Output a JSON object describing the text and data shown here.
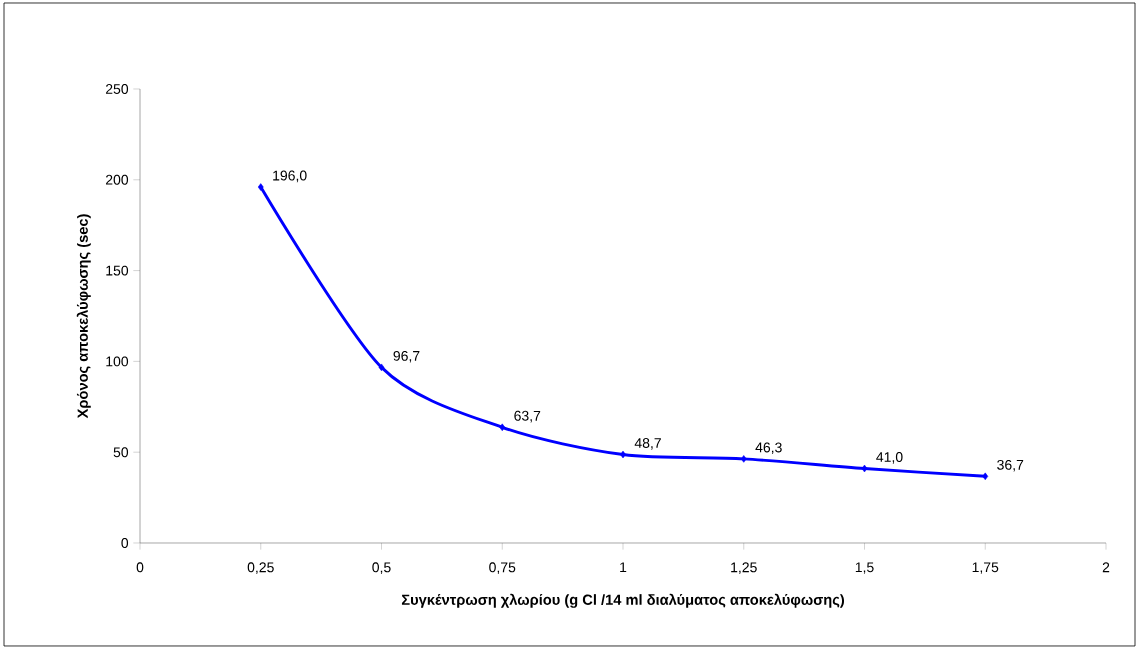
{
  "chart_data": {
    "type": "line",
    "xlabel": "Συγκέντρωση χλωρίου (g Cl /14 ml  διαλύματος αποκελύφωσης)",
    "ylabel": "Χρόνος αποκελύφωσης (sec)",
    "x": [
      0.25,
      0.5,
      0.75,
      1,
      1.25,
      1.5,
      1.75
    ],
    "series": [
      {
        "color": "#0000ff",
        "values": [
          196.0,
          96.7,
          63.7,
          48.7,
          46.3,
          41.0,
          36.7
        ],
        "value_labels": [
          "196,0",
          "96,7",
          "63,7",
          "48,7",
          "46,3",
          "41,0",
          "36,7"
        ]
      }
    ],
    "xlim": [
      0,
      2
    ],
    "ylim": [
      0,
      250
    ],
    "xticks": [
      0,
      {
        "value": 0.25,
        "label": "0,25"
      },
      {
        "value": 0.5,
        "label": "0,5"
      },
      {
        "value": 0.75,
        "label": "0,75"
      },
      1,
      {
        "value": 1.25,
        "label": "1,25"
      },
      {
        "value": 1.5,
        "label": "1,5"
      },
      {
        "value": 1.75,
        "label": "1,75"
      },
      2
    ],
    "yticks": [
      0,
      50,
      100,
      150,
      200,
      250
    ],
    "marker": "diamond"
  }
}
